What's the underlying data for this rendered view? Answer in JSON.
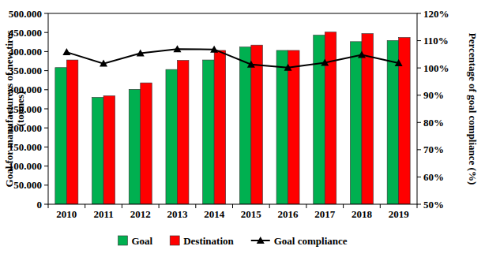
{
  "chart_data": {
    "type": "bar",
    "y_label": "Goal for manufacturers of new tires (tonnes)",
    "y2_label": "Percentage of goal compliance (%)",
    "categories": [
      "2010",
      "2011",
      "2012",
      "2013",
      "2014",
      "2015",
      "2016",
      "2017",
      "2018",
      "2019"
    ],
    "series": [
      {
        "name": "Goal",
        "type": "bar",
        "color": "#00b050",
        "values": [
          358000,
          280000,
          301000,
          353000,
          378000,
          412000,
          403000,
          443000,
          426000,
          429000
        ]
      },
      {
        "name": "Destination",
        "type": "bar",
        "color": "#ff0000",
        "values": [
          378000,
          284000,
          318000,
          377000,
          403000,
          417000,
          403000,
          451000,
          447000,
          437000
        ]
      },
      {
        "name": "Goal compliance",
        "type": "line",
        "axis": "y2",
        "color": "#000000",
        "marker": "triangle",
        "line_style": "solid",
        "values": [
          105.8,
          101.6,
          105.4,
          106.9,
          106.8,
          101.3,
          100.1,
          101.9,
          104.8,
          101.8
        ]
      }
    ],
    "ylim": [
      0,
      500000
    ],
    "yticks": [
      0,
      {
        "value": 50000,
        "label": "50.000"
      },
      {
        "value": 100000,
        "label": "100.000"
      },
      {
        "value": 150000,
        "label": "150.000"
      },
      {
        "value": 200000,
        "label": "200.000"
      },
      {
        "value": 250000,
        "label": "250.000"
      },
      {
        "value": 300000,
        "label": "300.000"
      },
      {
        "value": 350000,
        "label": "350.000"
      },
      {
        "value": 400000,
        "label": "400.000"
      },
      {
        "value": 450000,
        "label": "450.000"
      },
      {
        "value": 500000,
        "label": "500.000"
      }
    ],
    "y2lim": [
      50,
      120
    ],
    "y2ticks": [
      {
        "value": 50,
        "label": "50%"
      },
      {
        "value": 60,
        "label": "60%"
      },
      {
        "value": 70,
        "label": "70%"
      },
      {
        "value": 80,
        "label": "80%"
      },
      {
        "value": 90,
        "label": "90%"
      },
      {
        "value": 100,
        "label": "100%"
      },
      {
        "value": 110,
        "label": "110%"
      },
      {
        "value": 120,
        "label": "120%"
      }
    ],
    "grid": false,
    "legend": "bottom"
  }
}
